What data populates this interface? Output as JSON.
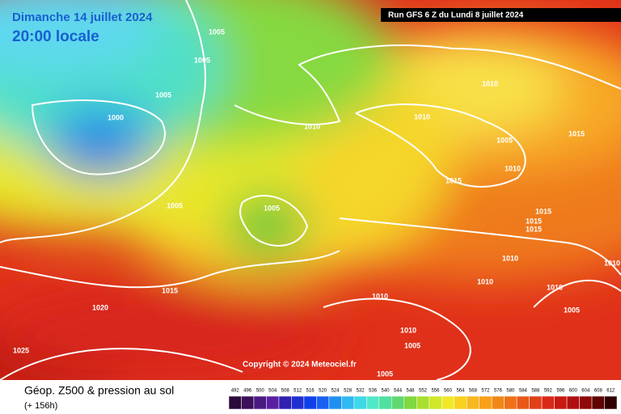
{
  "header": {
    "date": "Dimanche 14 juillet 2024",
    "time": "20:00 locale",
    "run": "Run GFS 6 Z du Lundi 8 juillet 2024"
  },
  "map": {
    "copyright": "Copyright © 2024 Meteociel.fr",
    "isobar_labels": [
      1005,
      1005,
      1005,
      1000,
      1005,
      1005,
      1015,
      1020,
      1025,
      1010,
      1010,
      1010,
      1005,
      1010,
      1015,
      1015,
      1015,
      1015,
      1015,
      1010,
      1010,
      1010,
      1005,
      1010,
      1010,
      1005,
      1005,
      1010
    ]
  },
  "footer": {
    "title": "Géop. Z500 & pression au sol",
    "lead": "(+ 156h)",
    "scale": [
      492,
      496,
      500,
      504,
      508,
      512,
      516,
      520,
      524,
      528,
      532,
      536,
      540,
      544,
      548,
      552,
      556,
      560,
      564,
      568,
      572,
      576,
      580,
      584,
      588,
      592,
      596,
      600,
      604,
      608,
      612
    ]
  }
}
